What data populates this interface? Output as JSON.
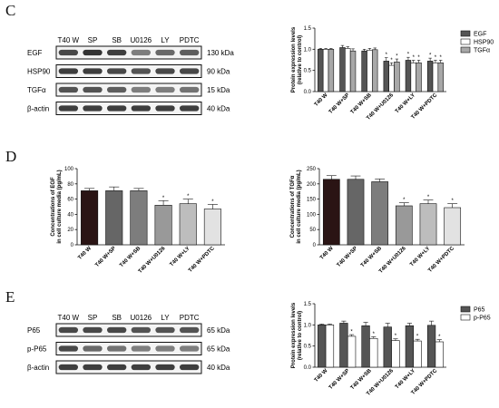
{
  "panels": {
    "c": "C",
    "d": "D",
    "e": "E"
  },
  "blot_c": {
    "lanes": [
      "T40 W",
      "SP",
      "SB",
      "U0126",
      "LY",
      "PDTC"
    ],
    "rows": [
      {
        "name": "EGF",
        "kda": "130 kDa",
        "intensity": [
          0.85,
          0.95,
          0.9,
          0.6,
          0.7,
          0.75
        ]
      },
      {
        "name": "HSP90",
        "kda": "90 kDa",
        "intensity": [
          0.9,
          0.9,
          0.85,
          0.8,
          0.85,
          0.85
        ]
      },
      {
        "name": "TGFα",
        "kda": "15 kDa",
        "intensity": [
          0.8,
          0.8,
          0.75,
          0.6,
          0.6,
          0.65
        ]
      },
      {
        "name": "β-actin",
        "kda": "40 kDa",
        "intensity": [
          0.9,
          0.9,
          0.9,
          0.9,
          0.9,
          0.9
        ]
      }
    ]
  },
  "blot_e": {
    "lanes": [
      "T40 W",
      "SP",
      "SB",
      "U0126",
      "LY",
      "PDTC"
    ],
    "rows": [
      {
        "name": "P65",
        "kda": "65 kDa",
        "intensity": [
          0.85,
          0.85,
          0.85,
          0.8,
          0.8,
          0.8
        ]
      },
      {
        "name": "p-P65",
        "kda": "65 kDa",
        "intensity": [
          0.85,
          0.7,
          0.65,
          0.6,
          0.6,
          0.6
        ]
      },
      {
        "name": "β-actin",
        "kda": "40 kDa",
        "intensity": [
          0.9,
          0.9,
          0.9,
          0.9,
          0.9,
          0.9
        ]
      }
    ]
  },
  "chart_data": [
    {
      "id": "c",
      "type": "bar",
      "ylabel": "Protein expression levels (relative to control)",
      "ylabel_lines": [
        "Protein expression levels",
        "(relative to control)"
      ],
      "categories": [
        "T40 W",
        "T40 W+SP",
        "T40 W+SB",
        "T40 W+U0126",
        "T40 W+LY",
        "T40 W+PDTC"
      ],
      "ylim": [
        0,
        1.5
      ],
      "yticks": [
        0.0,
        0.5,
        1.0,
        1.5
      ],
      "yticklabels": [
        "0.0",
        "0.5",
        "1.0",
        "1.5"
      ],
      "legend_position": "top-right",
      "series": [
        {
          "name": "EGF",
          "color": "#555555",
          "values": [
            1.0,
            1.04,
            0.96,
            0.72,
            0.74,
            0.72
          ],
          "errors": [
            0.02,
            0.05,
            0.04,
            0.08,
            0.07,
            0.07
          ],
          "sig": [
            false,
            false,
            false,
            true,
            true,
            true
          ]
        },
        {
          "name": "HSP90",
          "color": "#ffffff",
          "values": [
            1.0,
            1.02,
            0.98,
            0.62,
            0.68,
            0.68
          ],
          "errors": [
            0.02,
            0.04,
            0.04,
            0.06,
            0.06,
            0.06
          ],
          "sig": [
            false,
            false,
            false,
            true,
            true,
            true
          ]
        },
        {
          "name": "TGFα",
          "color": "#a8a8a8",
          "values": [
            1.0,
            0.96,
            0.99,
            0.7,
            0.68,
            0.68
          ],
          "errors": [
            0.02,
            0.05,
            0.04,
            0.07,
            0.06,
            0.06
          ],
          "sig": [
            false,
            false,
            false,
            true,
            true,
            true
          ]
        }
      ],
      "sig_label": "*"
    },
    {
      "id": "d1",
      "type": "bar",
      "ylabel": "Concentrations of EGF in cell culture media (pg/mL)",
      "ylabel_lines": [
        "Concentrations of EGF",
        "in cell culture media (pg/mL)"
      ],
      "categories": [
        "T40 W",
        "T40 W+SP",
        "T40 W+SB",
        "T40 W+U0126",
        "T40 W+LY",
        "T40 W+PDTC"
      ],
      "ylim": [
        0,
        100
      ],
      "yticks": [
        0,
        20,
        40,
        60,
        80,
        100
      ],
      "yticklabels": [
        "0",
        "20",
        "40",
        "60",
        "80",
        "100"
      ],
      "colors": [
        "#2a1414",
        "#666666",
        "#7d7d7d",
        "#999999",
        "#bdbdbd",
        "#e2e2e2"
      ],
      "values": [
        71,
        71,
        71,
        52,
        54,
        47
      ],
      "errors": [
        3,
        5,
        3,
        6,
        6,
        6
      ],
      "sig": [
        false,
        false,
        false,
        true,
        true,
        true
      ],
      "sig_label": "*"
    },
    {
      "id": "d2",
      "type": "bar",
      "ylabel": "Concentrations of TGFα in cell culture media (pg/mL)",
      "ylabel_lines": [
        "Concentrations of TGFα",
        "in cell culture media (pg/mL)"
      ],
      "categories": [
        "T40 W",
        "T40 W+SP",
        "T40 W+SB",
        "T40 W+U0126",
        "T40 W+LY",
        "T40 W+PDTC"
      ],
      "ylim": [
        0,
        250
      ],
      "yticks": [
        0,
        50,
        100,
        150,
        200,
        250
      ],
      "yticklabels": [
        "0",
        "50",
        "100",
        "150",
        "200",
        "250"
      ],
      "colors": [
        "#2a1414",
        "#666666",
        "#7d7d7d",
        "#999999",
        "#bdbdbd",
        "#e2e2e2"
      ],
      "values": [
        215,
        215,
        207,
        128,
        135,
        122
      ],
      "errors": [
        12,
        11,
        9,
        10,
        12,
        13
      ],
      "sig": [
        false,
        false,
        false,
        true,
        true,
        true
      ],
      "sig_label": "*"
    },
    {
      "id": "e",
      "type": "bar",
      "ylabel": "Protein expression levels (relative to control)",
      "ylabel_lines": [
        "Protein expression levels",
        "(relative to control)"
      ],
      "categories": [
        "T40 W",
        "T40 W+SP",
        "T40 W+SB",
        "T40 W+U0126",
        "T40 W+LY",
        "T40 W+PDTC"
      ],
      "ylim": [
        0,
        1.5
      ],
      "yticks": [
        0.0,
        0.5,
        1.0,
        1.5
      ],
      "yticklabels": [
        "0.0",
        "0.5",
        "1.0",
        "1.5"
      ],
      "legend_position": "top-right",
      "series": [
        {
          "name": "P65",
          "color": "#555555",
          "values": [
            1.0,
            1.04,
            0.98,
            0.95,
            0.98,
            0.99
          ],
          "errors": [
            0.02,
            0.05,
            0.08,
            0.09,
            0.06,
            0.1
          ],
          "sig": [
            false,
            false,
            false,
            false,
            false,
            false
          ]
        },
        {
          "name": "p-P65",
          "color": "#ffffff",
          "values": [
            1.0,
            0.73,
            0.68,
            0.63,
            0.62,
            0.6
          ],
          "errors": [
            0.02,
            0.04,
            0.04,
            0.04,
            0.04,
            0.05
          ],
          "sig": [
            false,
            true,
            true,
            true,
            true,
            true
          ]
        }
      ],
      "sig_label": "*"
    }
  ]
}
